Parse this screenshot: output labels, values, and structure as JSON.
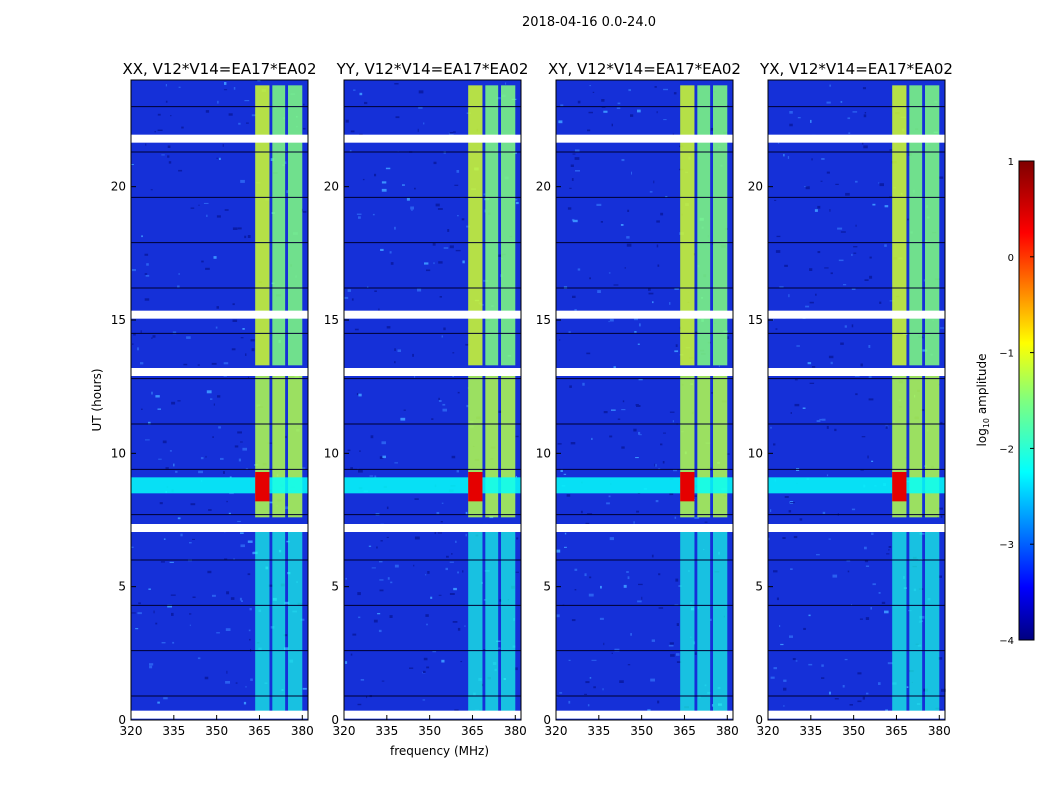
{
  "figure_title": "2018-04-16 0.0-24.0",
  "chart_data": [
    {
      "type": "heatmap",
      "title": "XX, V12*V14=EA17*EA02",
      "xlabel": "",
      "ylabel": "UT (hours)",
      "xlim": [
        320,
        382
      ],
      "ylim": [
        0,
        24
      ],
      "xticks": [
        320,
        335,
        350,
        365,
        380
      ],
      "yticks": [
        0,
        5,
        10,
        15,
        20
      ]
    },
    {
      "type": "heatmap",
      "title": "YY, V12*V14=EA17*EA02",
      "xlabel": "frequency (MHz)",
      "ylabel": "",
      "xlim": [
        320,
        382
      ],
      "ylim": [
        0,
        24
      ],
      "xticks": [
        320,
        335,
        350,
        365,
        380
      ],
      "yticks": [
        0,
        5,
        10,
        15,
        20
      ]
    },
    {
      "type": "heatmap",
      "title": "XY, V12*V14=EA17*EA02",
      "xlabel": "",
      "ylabel": "",
      "xlim": [
        320,
        382
      ],
      "ylim": [
        0,
        24
      ],
      "xticks": [
        320,
        335,
        350,
        365,
        380
      ],
      "yticks": [
        0,
        5,
        10,
        15,
        20
      ]
    },
    {
      "type": "heatmap",
      "title": "YX, V12*V14=EA17*EA02",
      "xlabel": "",
      "ylabel": "",
      "xlim": [
        320,
        382
      ],
      "ylim": [
        0,
        24
      ],
      "xticks": [
        320,
        335,
        350,
        365,
        380
      ],
      "yticks": [
        0,
        5,
        10,
        15,
        20
      ]
    }
  ],
  "colorbar": {
    "label": "log10 amplitude",
    "range": [
      -4,
      1
    ],
    "ticks": [
      1,
      0,
      -1,
      -2,
      -3,
      -4
    ],
    "tick_labels": [
      "1",
      "0",
      "−1",
      "−2",
      "−3",
      "−4"
    ]
  },
  "signal": {
    "gap_hours": [
      0.2,
      15.2,
      13.05,
      7.2,
      21.8
    ],
    "bright_bands_mhz": [
      [
        363.5,
        368.5
      ],
      [
        369.5,
        374
      ],
      [
        375,
        380
      ]
    ],
    "flare_hours": [
      8.5,
      9.1
    ]
  }
}
